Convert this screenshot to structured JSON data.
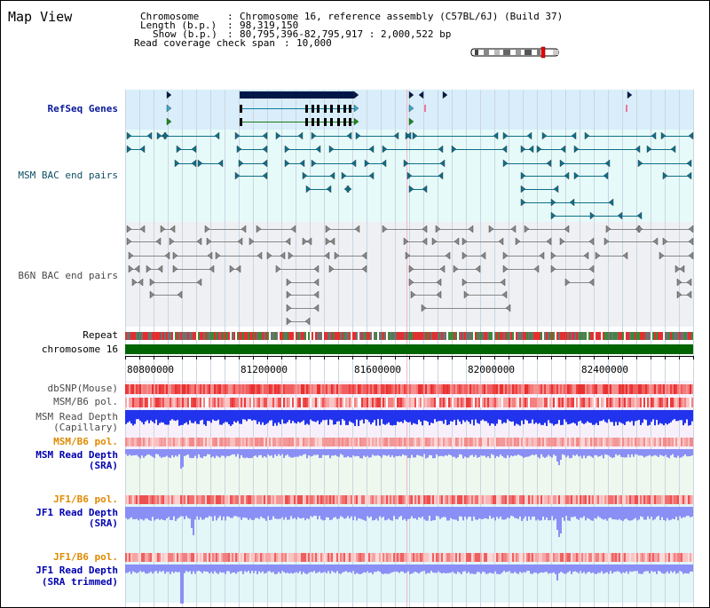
{
  "header": {
    "title": "Map View",
    "chromosome_key": "Chromosome     ",
    "chromosome_value": "Chromosome 16, reference assembly (C57BL/6J) (Build 37)",
    "length_key": "Length (b.p.) ",
    "length_value": "98,319,150",
    "show_key": "Show (b.p.) ",
    "show_value": "80,795,396-82,795,917 : 2,000,522 bp",
    "read_span_key": "Read coverage check span",
    "read_span_value": "10,000"
  },
  "tracks": {
    "refseq": "RefSeq Genes",
    "msm_bac": "MSM BAC end pairs",
    "b6n_bac": "B6N BAC end pairs",
    "repeat": "Repeat",
    "chromosome": "chromosome 16",
    "dbsnp": "dbSNP(Mouse)",
    "msm_b6_pol": "MSM/B6 pol.",
    "msm_depth_cap_1": "MSM Read Depth",
    "msm_depth_cap_2": "(Capillary)",
    "msm_b6_pol_2": "MSM/B6 pol.",
    "msm_depth_sra_1": "MSM Read Depth",
    "msm_depth_sra_2": "(SRA)",
    "jf1_b6_pol": "JF1/B6 pol.",
    "jf1_depth_sra_1": "JF1 Read Depth",
    "jf1_depth_sra_2": "(SRA)",
    "jf1_b6_pol_2": "JF1/B6 pol.",
    "jf1_depth_trim_1": "JF1 Read Depth",
    "jf1_depth_trim_2": "(SRA trimmed)"
  },
  "axis": {
    "ticks": [
      "80800000",
      "81200000",
      "81600000",
      "82000000",
      "82400000"
    ]
  },
  "colors": {
    "refseq_bg": "#d9eefa",
    "bac_bg": "#e6fafa",
    "b6n_bg": "#eef0f3",
    "gene_dark": "#00174a",
    "gene_cyan": "#0e7ea0",
    "msm_feature": "#0e6f8a",
    "b6n_feature": "#888888",
    "chromosome_bar": "#006400",
    "snp_red": "#ee4a4a",
    "depth_blue": "#2233ee",
    "depth_light": "#8a8ff5"
  }
}
